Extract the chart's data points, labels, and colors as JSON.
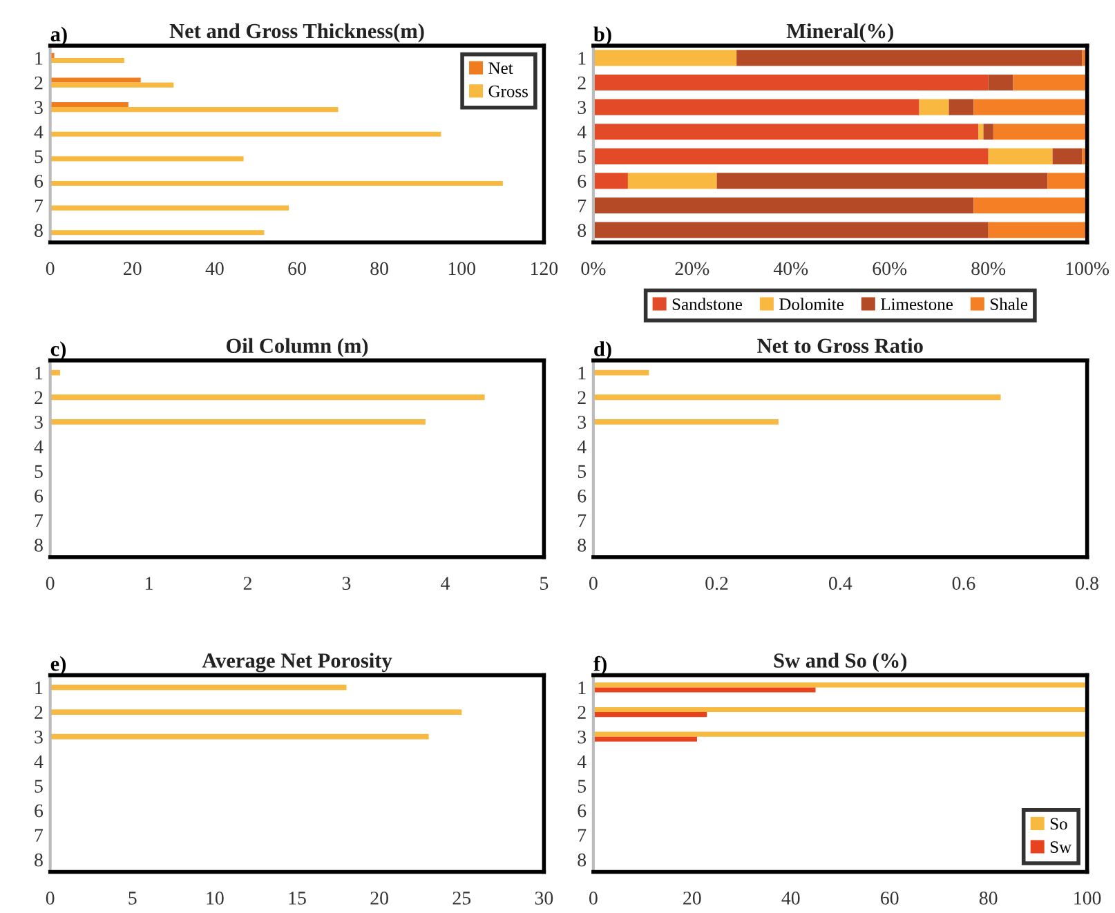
{
  "chart_data": [
    {
      "type": "bar",
      "orientation": "horizontal",
      "title": "Net and Gross Thickness(m)",
      "annotations": [
        "a)"
      ],
      "categories": [
        "1",
        "2",
        "3",
        "4",
        "5",
        "6",
        "7",
        "8"
      ],
      "series": [
        {
          "name": "Net",
          "color": "#f07c1e",
          "values": [
            1,
            22,
            19,
            null,
            null,
            null,
            null,
            null
          ]
        },
        {
          "name": "Gross",
          "color": "#f7b940",
          "values": [
            18,
            30,
            70,
            95,
            47,
            110,
            58,
            52
          ]
        }
      ],
      "xlim": [
        0,
        120
      ],
      "xticks": [
        0,
        20,
        40,
        60,
        80,
        100,
        120
      ],
      "legend": "top right"
    },
    {
      "type": "bar",
      "orientation": "horizontal",
      "stacked": true,
      "title": "Mineral(%)",
      "annotations": [
        "b)"
      ],
      "categories": [
        "1",
        "2",
        "3",
        "4",
        "5",
        "6",
        "7",
        "8"
      ],
      "series": [
        {
          "name": "Sandstone",
          "color": "#e34a27",
          "values": [
            0,
            80,
            66,
            78,
            80,
            7,
            0,
            0
          ]
        },
        {
          "name": "Dolomite",
          "color": "#f9b940",
          "values": [
            29,
            0,
            6,
            1,
            13,
            18,
            0,
            0
          ]
        },
        {
          "name": "Limestone",
          "color": "#b54a27",
          "values": [
            70,
            5,
            5,
            2,
            6,
            67,
            77,
            80
          ]
        },
        {
          "name": "Shale",
          "color": "#f57f25",
          "values": [
            1,
            15,
            23,
            19,
            1,
            8,
            23,
            20
          ]
        }
      ],
      "xlim": [
        0,
        100
      ],
      "xticks": [
        {
          "value": 0,
          "label": "0%"
        },
        {
          "value": 20,
          "label": "20%"
        },
        {
          "value": 40,
          "label": "40%"
        },
        {
          "value": 60,
          "label": "60%"
        },
        {
          "value": 80,
          "label": "80%"
        },
        {
          "value": 100,
          "label": "100%"
        }
      ],
      "legend": "bottom"
    },
    {
      "type": "bar",
      "orientation": "horizontal",
      "title": "Oil Column (m)",
      "annotations": [
        "c)"
      ],
      "categories": [
        "1",
        "2",
        "3",
        "4",
        "5",
        "6",
        "7",
        "8"
      ],
      "color": "#f7b940",
      "values": [
        0.1,
        4.4,
        3.8,
        null,
        null,
        null,
        null,
        null
      ],
      "xlim": [
        0,
        5
      ],
      "xticks": [
        0,
        1,
        2,
        3,
        4,
        5
      ]
    },
    {
      "type": "bar",
      "orientation": "horizontal",
      "title": "Net to Gross Ratio",
      "annotations": [
        "d)"
      ],
      "categories": [
        "1",
        "2",
        "3",
        "4",
        "5",
        "6",
        "7",
        "8"
      ],
      "color": "#f7b940",
      "values": [
        0.09,
        0.66,
        0.3,
        null,
        null,
        null,
        null,
        null
      ],
      "xlim": [
        0,
        0.8
      ],
      "xticks": [
        0,
        0.2,
        0.4,
        0.6,
        0.8
      ]
    },
    {
      "type": "bar",
      "orientation": "horizontal",
      "title": "Average Net Porosity",
      "annotations": [
        "e)"
      ],
      "categories": [
        "1",
        "2",
        "3",
        "4",
        "5",
        "6",
        "7",
        "8"
      ],
      "color": "#f7b940",
      "values": [
        18,
        25,
        23,
        null,
        null,
        null,
        null,
        null
      ],
      "xlim": [
        0,
        30
      ],
      "xticks": [
        0,
        5,
        10,
        15,
        20,
        25,
        30
      ]
    },
    {
      "type": "bar",
      "orientation": "horizontal",
      "title": "Sw and So (%)",
      "annotations": [
        "f)"
      ],
      "categories": [
        "1",
        "2",
        "3",
        "4",
        "5",
        "6",
        "7",
        "8"
      ],
      "series": [
        {
          "name": "So",
          "color": "#f7b940",
          "values": [
            100,
            100,
            100,
            null,
            null,
            null,
            null,
            null
          ]
        },
        {
          "name": "Sw",
          "color": "#e8431f",
          "values": [
            45,
            23,
            21,
            null,
            null,
            null,
            null,
            null
          ]
        }
      ],
      "xlim": [
        0,
        100
      ],
      "xticks": [
        0,
        20,
        40,
        60,
        80,
        100
      ],
      "legend": "bottom right"
    }
  ]
}
